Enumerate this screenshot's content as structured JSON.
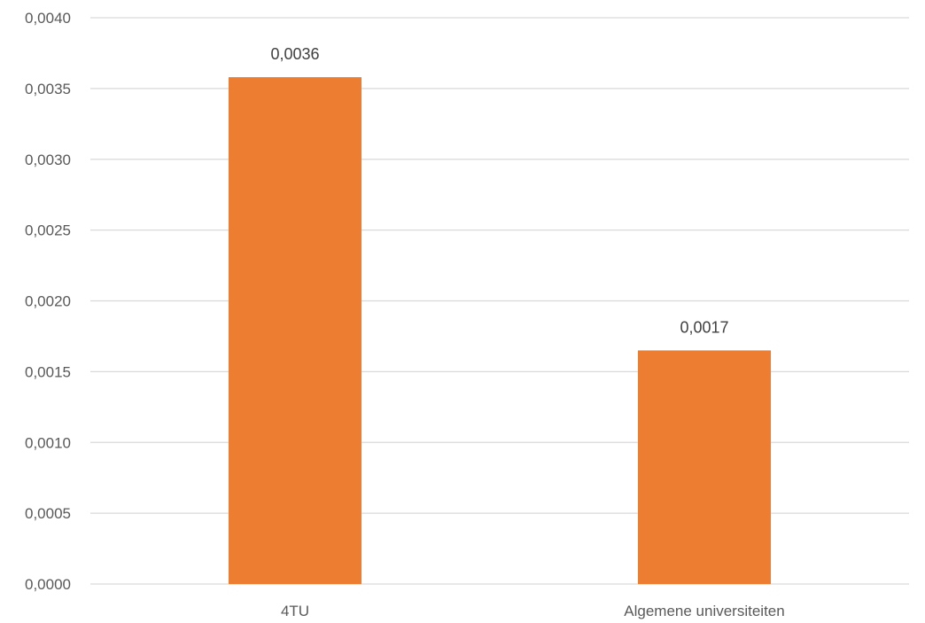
{
  "chart_data": {
    "type": "bar",
    "title": "",
    "xlabel": "",
    "ylabel": "",
    "categories": [
      "4TU",
      "Algemene universiteiten"
    ],
    "values": [
      0.00358,
      0.00165
    ],
    "data_labels": [
      "0,0036",
      "0,0017"
    ],
    "ylim": [
      0,
      0.004
    ],
    "y_ticks": [
      0.0,
      0.0005,
      0.001,
      0.0015,
      0.002,
      0.0025,
      0.003,
      0.0035,
      0.004
    ],
    "y_tick_labels": [
      "0,0000",
      "0,0005",
      "0,0010",
      "0,0015",
      "0,0020",
      "0,0025",
      "0,0030",
      "0,0035",
      "0,0040"
    ],
    "grid": true,
    "legend": "none",
    "bar_color": "#ed7d31"
  }
}
